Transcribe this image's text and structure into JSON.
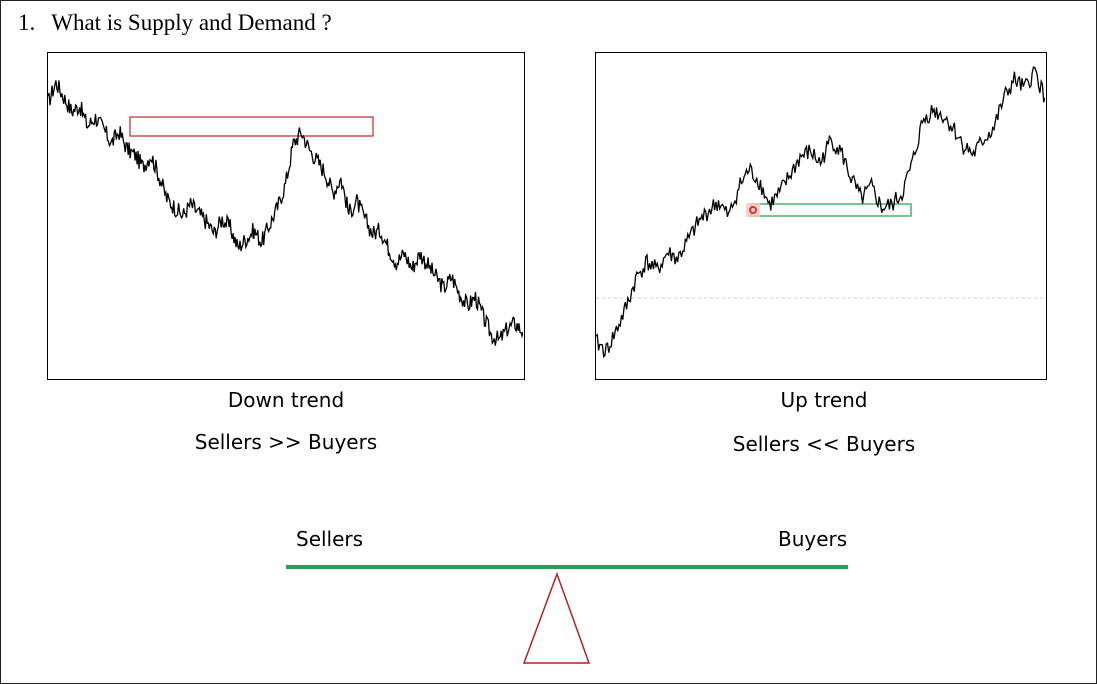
{
  "heading": {
    "number": "1.",
    "text": "What is Supply and Demand ?"
  },
  "charts": {
    "down": {
      "title": "Down trend",
      "subtitle": "Sellers >> Buyers",
      "zone_color": "#c0393b"
    },
    "up": {
      "title": "Up trend",
      "subtitle": "Sellers << Buyers",
      "zone_color": "#2ea84f",
      "marker_color": "#e03030"
    }
  },
  "balance": {
    "left_label": "Sellers",
    "right_label": "Buyers",
    "beam_color": "#1fa35a",
    "fulcrum_color": "#b22222"
  },
  "chart_data": [
    {
      "type": "line",
      "title": "",
      "xlabel": "",
      "ylabel": "",
      "trend": "down",
      "series": [
        {
          "values": [
            88,
            95,
            90,
            85,
            87,
            80,
            83,
            79,
            74,
            78,
            72,
            70,
            66,
            70,
            63,
            55,
            52,
            49,
            53,
            50,
            47,
            43,
            48,
            45,
            38,
            41,
            44,
            40,
            46,
            52,
            60,
            74,
            78,
            72,
            68,
            64,
            57,
            62,
            50,
            54,
            48,
            43,
            44,
            38,
            33,
            36,
            31,
            36,
            32,
            28,
            24,
            28,
            22,
            18,
            21,
            14,
            8,
            6,
            10,
            12,
            9
          ]
        }
      ],
      "grid": false
    },
    {
      "type": "line",
      "title": "",
      "xlabel": "",
      "ylabel": "",
      "trend": "up",
      "series": [
        {
          "values": [
            8,
            5,
            12,
            20,
            30,
            35,
            32,
            38,
            36,
            42,
            48,
            52,
            55,
            50,
            60,
            66,
            62,
            54,
            58,
            64,
            70,
            72,
            68,
            76,
            72,
            63,
            56,
            60,
            53,
            54,
            58,
            68,
            82,
            86,
            84,
            80,
            74,
            71,
            76,
            80,
            90,
            96,
            93,
            99,
            90
          ]
        }
      ],
      "grid": false
    }
  ]
}
